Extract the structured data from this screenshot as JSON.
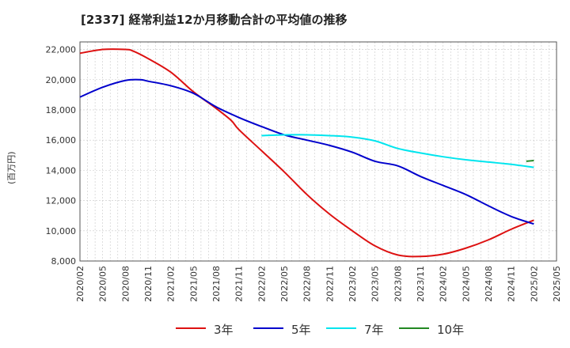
{
  "title": "[2337]  経常利益12か月移動合計の平均値の推移",
  "chart_data": {
    "type": "line",
    "title": "[2337]  経常利益12か月移動合計の平均値の推移",
    "ylabel": "(百万円)",
    "xlabel": "",
    "ylim": [
      8000,
      22500
    ],
    "y_ticks": [
      8000,
      10000,
      12000,
      14000,
      16000,
      18000,
      20000,
      22000
    ],
    "y_tick_labels": [
      "8,000",
      "10,000",
      "12,000",
      "14,000",
      "16,000",
      "18,000",
      "20,000",
      "22,000"
    ],
    "x_ticks": [
      "2020/02",
      "2020/05",
      "2020/08",
      "2020/11",
      "2021/02",
      "2021/05",
      "2021/08",
      "2021/11",
      "2022/02",
      "2022/05",
      "2022/08",
      "2022/11",
      "2023/02",
      "2023/05",
      "2023/08",
      "2023/11",
      "2024/02",
      "2024/05",
      "2024/08",
      "2024/11",
      "2025/02",
      "2025/05"
    ],
    "grid": true,
    "legend_position": "bottom",
    "series": [
      {
        "name": "3年",
        "color": "#dd1111",
        "points": [
          [
            "2020/02",
            21750
          ],
          [
            "2020/05",
            22000
          ],
          [
            "2020/08",
            22000
          ],
          [
            "2020/09",
            21900
          ],
          [
            "2020/11",
            21400
          ],
          [
            "2021/02",
            20500
          ],
          [
            "2021/05",
            19200
          ],
          [
            "2021/08",
            18100
          ],
          [
            "2021/10",
            17300
          ],
          [
            "2021/11",
            16700
          ],
          [
            "2022/02",
            15300
          ],
          [
            "2022/05",
            13900
          ],
          [
            "2022/08",
            12400
          ],
          [
            "2022/11",
            11100
          ],
          [
            "2023/02",
            10000
          ],
          [
            "2023/05",
            9000
          ],
          [
            "2023/08",
            8400
          ],
          [
            "2023/11",
            8300
          ],
          [
            "2024/02",
            8450
          ],
          [
            "2024/05",
            8850
          ],
          [
            "2024/08",
            9400
          ],
          [
            "2024/11",
            10100
          ],
          [
            "2025/02",
            10700
          ]
        ]
      },
      {
        "name": "5年",
        "color": "#0000cc",
        "points": [
          [
            "2020/02",
            18850
          ],
          [
            "2020/05",
            19500
          ],
          [
            "2020/08",
            19950
          ],
          [
            "2020/10",
            20000
          ],
          [
            "2020/11",
            19900
          ],
          [
            "2021/02",
            19600
          ],
          [
            "2021/05",
            19100
          ],
          [
            "2021/08",
            18200
          ],
          [
            "2021/11",
            17500
          ],
          [
            "2022/02",
            16900
          ],
          [
            "2022/05",
            16350
          ],
          [
            "2022/08",
            16000
          ],
          [
            "2022/11",
            15650
          ],
          [
            "2023/02",
            15200
          ],
          [
            "2023/05",
            14600
          ],
          [
            "2023/08",
            14300
          ],
          [
            "2023/11",
            13600
          ],
          [
            "2024/02",
            13000
          ],
          [
            "2024/05",
            12400
          ],
          [
            "2024/08",
            11650
          ],
          [
            "2024/11",
            10950
          ],
          [
            "2025/02",
            10450
          ]
        ]
      },
      {
        "name": "7年",
        "color": "#00e5ee",
        "points": [
          [
            "2022/02",
            16300
          ],
          [
            "2022/05",
            16350
          ],
          [
            "2022/08",
            16350
          ],
          [
            "2022/11",
            16300
          ],
          [
            "2023/02",
            16200
          ],
          [
            "2023/05",
            15950
          ],
          [
            "2023/08",
            15450
          ],
          [
            "2023/11",
            15150
          ],
          [
            "2024/02",
            14900
          ],
          [
            "2024/05",
            14700
          ],
          [
            "2024/08",
            14550
          ],
          [
            "2024/11",
            14400
          ],
          [
            "2025/02",
            14200
          ]
        ]
      },
      {
        "name": "10年",
        "color": "#228822",
        "points": [
          [
            "2025/01",
            14600
          ],
          [
            "2025/02",
            14650
          ]
        ]
      }
    ]
  }
}
